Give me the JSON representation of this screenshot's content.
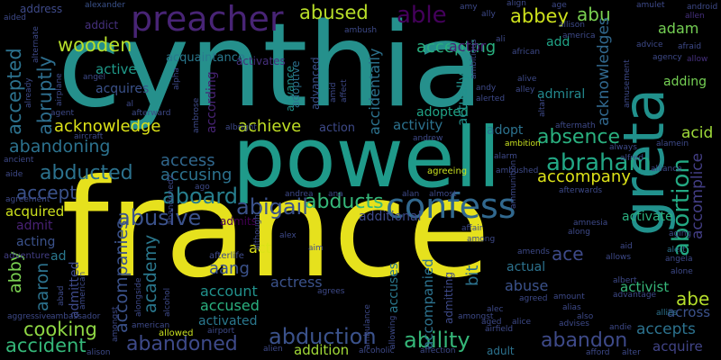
{
  "words": [
    {
      "text": "france",
      "color": "#e6e11d"
    },
    {
      "text": "cynthia",
      "color": "#25908c"
    },
    {
      "text": "powell",
      "color": "#1f9a8a"
    },
    {
      "text": "greta",
      "color": "#21918c"
    },
    {
      "text": "preacher",
      "color": "#482475"
    },
    {
      "text": "confess",
      "color": "#31688e"
    },
    {
      "text": "abduction",
      "color": "#3b528b"
    },
    {
      "text": "abandoned",
      "color": "#3e4a89"
    },
    {
      "text": "ability",
      "color": "#35b779"
    },
    {
      "text": "abortion",
      "color": "#23a983"
    },
    {
      "text": "abraham",
      "color": "#22a785"
    },
    {
      "text": "abusive",
      "color": "#3b528b"
    },
    {
      "text": "aboard",
      "color": "#277f8e"
    },
    {
      "text": "abigail",
      "color": "#3b528b"
    },
    {
      "text": "abducts",
      "color": "#35b779"
    },
    {
      "text": "abducted",
      "color": "#2c728e"
    },
    {
      "text": "abandoning",
      "color": "#2c728e"
    },
    {
      "text": "accident",
      "color": "#35b779"
    },
    {
      "text": "cooking",
      "color": "#8fd744"
    },
    {
      "text": "abandon",
      "color": "#3e4a89"
    },
    {
      "text": "absence",
      "color": "#2ab07f"
    },
    {
      "text": "abused",
      "color": "#b8de29"
    },
    {
      "text": "able",
      "color": "#44015b"
    },
    {
      "text": "abbey",
      "color": "#cde11d"
    },
    {
      "text": "abu",
      "color": "#7ad151"
    },
    {
      "text": "wooden",
      "color": "#b5de2b"
    },
    {
      "text": "abruptly",
      "color": "#2e6e8e"
    },
    {
      "text": "accepted",
      "color": "#2c728e"
    },
    {
      "text": "accept",
      "color": "#3b528b"
    },
    {
      "text": "acknowledge",
      "color": "#dde318"
    },
    {
      "text": "achieve",
      "color": "#c0df25"
    },
    {
      "text": "access",
      "color": "#31688e"
    },
    {
      "text": "accusing",
      "color": "#2c728e"
    },
    {
      "text": "accompany",
      "color": "#dde318"
    },
    {
      "text": "acquired",
      "color": "#cde11d"
    },
    {
      "text": "admit",
      "color": "#482173"
    },
    {
      "text": "acting",
      "color": "#3b528b"
    },
    {
      "text": "abby",
      "color": "#7ad151"
    },
    {
      "text": "aaron",
      "color": "#2c728e"
    },
    {
      "text": "admitted",
      "color": "#3e4a89"
    },
    {
      "text": "accompanies",
      "color": "#3b528b"
    },
    {
      "text": "academy",
      "color": "#2a788e"
    },
    {
      "text": "accepting",
      "color": "#29af7f"
    },
    {
      "text": "actor",
      "color": "#482475"
    },
    {
      "text": "add",
      "color": "#20a386"
    },
    {
      "text": "adam",
      "color": "#75d054"
    },
    {
      "text": "acid",
      "color": "#9fda3a"
    },
    {
      "text": "abe",
      "color": "#b5de2b"
    },
    {
      "text": "ace",
      "color": "#3e4a89"
    },
    {
      "text": "aang",
      "color": "#3b528b"
    },
    {
      "text": "act",
      "color": "#dde318"
    },
    {
      "text": "actress",
      "color": "#3b528b"
    },
    {
      "text": "account",
      "color": "#21918c"
    },
    {
      "text": "accused",
      "color": "#2ab07f"
    },
    {
      "text": "activated",
      "color": "#2a788e"
    },
    {
      "text": "abandoned2",
      "color": "#3e4a89"
    },
    {
      "text": "addition",
      "color": "#a2da37"
    },
    {
      "text": "accepts",
      "color": "#2c728e"
    },
    {
      "text": "acquire",
      "color": "#414487"
    },
    {
      "text": "across",
      "color": "#3b528b"
    },
    {
      "text": "abuse",
      "color": "#3b528b"
    },
    {
      "text": "actual",
      "color": "#2c728e"
    },
    {
      "text": "activist",
      "color": "#35b779"
    },
    {
      "text": "activate",
      "color": "#2ab07f"
    },
    {
      "text": "accomplice",
      "color": "#433e85"
    },
    {
      "text": "acknowledges",
      "color": "#31688e"
    },
    {
      "text": "adopt",
      "color": "#2c728e"
    },
    {
      "text": "activity",
      "color": "#2c728e"
    },
    {
      "text": "adopted",
      "color": "#20a386"
    },
    {
      "text": "accidentally",
      "color": "#2c728e"
    },
    {
      "text": "actually",
      "color": "#21918c"
    },
    {
      "text": "admiral",
      "color": "#23898e"
    },
    {
      "text": "adding",
      "color": "#75d054"
    },
    {
      "text": "active",
      "color": "#1f9a8a"
    },
    {
      "text": "acquires",
      "color": "#3b528b"
    },
    {
      "text": "acquaintance",
      "color": "#2a788e"
    },
    {
      "text": "activates",
      "color": "#46307e"
    },
    {
      "text": "address",
      "color": "#3e4a89"
    },
    {
      "text": "addict",
      "color": "#46307e"
    },
    {
      "text": "action",
      "color": "#3e4a89"
    },
    {
      "text": "accompanied",
      "color": "#2c728e"
    },
    {
      "text": "accuses",
      "color": "#2a788e"
    },
    {
      "text": "admitting",
      "color": "#3e4a89"
    },
    {
      "text": "additional",
      "color": "#3e4a89"
    },
    {
      "text": "bit",
      "color": "#2c728e"
    },
    {
      "text": "advance",
      "color": "#21918c"
    },
    {
      "text": "adoptive",
      "color": "#2c728e"
    },
    {
      "text": "advanced",
      "color": "#3b528b"
    },
    {
      "text": "according",
      "color": "#482475"
    },
    {
      "text": "admits",
      "color": "#440154"
    },
    {
      "text": "afterlife",
      "color": "#3e4a89"
    },
    {
      "text": "adult",
      "color": "#2c728e"
    },
    {
      "text": "adventure",
      "color": "#433e85"
    },
    {
      "text": "ad",
      "color": "#2a788e"
    },
    {
      "text": "alexander",
      "color": "#3b528b"
    },
    {
      "text": "aided",
      "color": "#3e4a89"
    },
    {
      "text": "allen",
      "color": "#46307e"
    },
    {
      "text": "android",
      "color": "#3e4a89"
    },
    {
      "text": "allow",
      "color": "#46307e"
    },
    {
      "text": "alert",
      "color": "#2c728e"
    },
    {
      "text": "angela",
      "color": "#3e4a89"
    },
    {
      "text": "alone",
      "color": "#3e4a89"
    },
    {
      "text": "allies",
      "color": "#2c728e"
    },
    {
      "text": "aging",
      "color": "#3e4a89"
    },
    {
      "text": "aid",
      "color": "#3e4a89"
    },
    {
      "text": "allows",
      "color": "#3e4a89"
    },
    {
      "text": "along",
      "color": "#3e4a89"
    },
    {
      "text": "alliance",
      "color": "#3e4a89"
    },
    {
      "text": "alamein",
      "color": "#3e4a89"
    },
    {
      "text": "always",
      "color": "#3e4a89"
    },
    {
      "text": "alfred",
      "color": "#3e4a89"
    },
    {
      "text": "aftermath",
      "color": "#3e4a89"
    },
    {
      "text": "ambition",
      "color": "#c8e020"
    },
    {
      "text": "alarm",
      "color": "#3e4a89"
    },
    {
      "text": "agreeing",
      "color": "#c8e020"
    },
    {
      "text": "afterwards",
      "color": "#3e4a89"
    },
    {
      "text": "andrew",
      "color": "#3e4a89"
    },
    {
      "text": "alan",
      "color": "#3e4a89"
    },
    {
      "text": "almost",
      "color": "#3e4a89"
    },
    {
      "text": "andrea",
      "color": "#3e4a89"
    },
    {
      "text": "ana",
      "color": "#3e4a89"
    },
    {
      "text": "affair",
      "color": "#3e4a89"
    },
    {
      "text": "among",
      "color": "#3e4a89"
    },
    {
      "text": "amends",
      "color": "#3e4a89"
    },
    {
      "text": "aim",
      "color": "#3e4a89"
    },
    {
      "text": "alien",
      "color": "#3e4a89"
    },
    {
      "text": "allowed",
      "color": "#c8e020"
    },
    {
      "text": "airport",
      "color": "#3e4a89"
    },
    {
      "text": "alcoholic",
      "color": "#3e4a89"
    },
    {
      "text": "affection",
      "color": "#3e4a89"
    },
    {
      "text": "airfield",
      "color": "#3e4a89"
    },
    {
      "text": "aged",
      "color": "#3e4a89"
    },
    {
      "text": "alice",
      "color": "#3e4a89"
    },
    {
      "text": "advises",
      "color": "#3e4a89"
    },
    {
      "text": "andie",
      "color": "#3e4a89"
    },
    {
      "text": "afford",
      "color": "#3e4a89"
    },
    {
      "text": "alter",
      "color": "#3e4a89"
    },
    {
      "text": "alison",
      "color": "#3e4a89"
    },
    {
      "text": "agrees",
      "color": "#3e4a89"
    },
    {
      "text": "agreed",
      "color": "#3e4a89"
    },
    {
      "text": "amount",
      "color": "#3e4a89"
    },
    {
      "text": "advantage",
      "color": "#3e4a89"
    },
    {
      "text": "albert",
      "color": "#3e4a89"
    },
    {
      "text": "alias",
      "color": "#3e4a89"
    },
    {
      "text": "also",
      "color": "#3e4a89"
    },
    {
      "text": "alec",
      "color": "#3e4a89"
    },
    {
      "text": "amongst",
      "color": "#3e4a89"
    },
    {
      "text": "american",
      "color": "#3e4a89"
    },
    {
      "text": "ambassador",
      "color": "#3e4a89"
    },
    {
      "text": "aggressive",
      "color": "#3e4a89"
    },
    {
      "text": "ancient",
      "color": "#3e4a89"
    },
    {
      "text": "aide",
      "color": "#3e4a89"
    },
    {
      "text": "agreement",
      "color": "#3e4a89"
    },
    {
      "text": "ago",
      "color": "#3e4a89"
    },
    {
      "text": "alex",
      "color": "#3e4a89"
    },
    {
      "text": "aircraft",
      "color": "#3e4a89"
    },
    {
      "text": "albright",
      "color": "#3e4a89"
    },
    {
      "text": "angel",
      "color": "#3e4a89"
    },
    {
      "text": "al",
      "color": "#3e4a89"
    },
    {
      "text": "afterward",
      "color": "#3e4a89"
    },
    {
      "text": "agent",
      "color": "#3e4a89"
    },
    {
      "text": "ambush",
      "color": "#3e4a89"
    },
    {
      "text": "amy",
      "color": "#3e4a89"
    },
    {
      "text": "ally",
      "color": "#3e4a89"
    },
    {
      "text": "align",
      "color": "#3e4a89"
    },
    {
      "text": "ali",
      "color": "#3e4a89"
    },
    {
      "text": "african",
      "color": "#3e4a89"
    },
    {
      "text": "age",
      "color": "#3e4a89"
    },
    {
      "text": "allison",
      "color": "#3e4a89"
    },
    {
      "text": "america",
      "color": "#3e4a89"
    },
    {
      "text": "amulet",
      "color": "#3e4a89"
    },
    {
      "text": "afraid",
      "color": "#3e4a89"
    },
    {
      "text": "advice",
      "color": "#3e4a89"
    },
    {
      "text": "agency",
      "color": "#3e4a89"
    },
    {
      "text": "alive",
      "color": "#3e4a89"
    },
    {
      "text": "andy",
      "color": "#3e4a89"
    },
    {
      "text": "alerted",
      "color": "#3e4a89"
    },
    {
      "text": "alley",
      "color": "#3e4a89"
    },
    {
      "text": "alpha",
      "color": "#3e4a89"
    },
    {
      "text": "amid",
      "color": "#3e4a89"
    },
    {
      "text": "affect",
      "color": "#3e4a89"
    },
    {
      "text": "airplane",
      "color": "#3e4a89"
    },
    {
      "text": "already",
      "color": "#3e4a89"
    },
    {
      "text": "alternate",
      "color": "#3e4a89"
    },
    {
      "text": "ambitious",
      "color": "#3e4a89"
    },
    {
      "text": "ammunition",
      "color": "#3e4a89"
    },
    {
      "text": "ambushed",
      "color": "#3e4a89"
    },
    {
      "text": "amnesia",
      "color": "#3e4a89"
    },
    {
      "text": "abad",
      "color": "#3e4a89"
    },
    {
      "text": "alcohol",
      "color": "#3e4a89"
    },
    {
      "text": "alongside",
      "color": "#3e4a89"
    },
    {
      "text": "allowing",
      "color": "#3e4a89"
    },
    {
      "text": "ambulance",
      "color": "#3e4a89"
    },
    {
      "text": "although",
      "color": "#3e4a89"
    },
    {
      "text": "amusement",
      "color": "#3e4a89"
    },
    {
      "text": "altar",
      "color": "#3e4a89"
    },
    {
      "text": "ambrose",
      "color": "#3e4a89"
    },
    {
      "text": "agree",
      "color": "#3e4a89"
    },
    {
      "text": "allie",
      "color": "#3e4a89"
    }
  ]
}
